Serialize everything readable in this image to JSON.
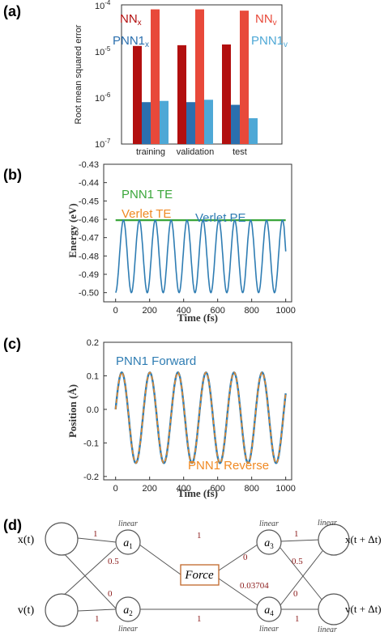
{
  "panel_labels": [
    "(a)",
    "(b)",
    "(c)",
    "(d)"
  ],
  "chart_data": [
    {
      "panel": "(a)",
      "type": "bar",
      "categories": [
        "training",
        "validation",
        "test"
      ],
      "ylabel": "Root mean squared error",
      "yscale": "log",
      "ylim": [
        1e-07,
        0.0001
      ],
      "yticks": [
        "10^-7",
        "10^-6",
        "10^-5",
        "10^-4"
      ],
      "series": [
        {
          "name": "NN_x",
          "legend_main": "NN",
          "legend_sub": "x",
          "color": "#b20f0f",
          "values": [
            1.3e-05,
            1.35e-05,
            1.4e-05
          ]
        },
        {
          "name": "PNN1_x",
          "legend_main": "PNN1",
          "legend_sub": "x",
          "color": "#2b6fae",
          "values": [
            8e-07,
            8e-07,
            7e-07
          ]
        },
        {
          "name": "NN_v",
          "legend_main": "NN",
          "legend_sub": "v",
          "color": "#e8493a",
          "values": [
            8e-05,
            8e-05,
            7.5e-05
          ]
        },
        {
          "name": "PNN1_v",
          "legend_main": "PNN1",
          "legend_sub": "v",
          "color": "#4ea8d6",
          "values": [
            8.5e-07,
            9e-07,
            3.6e-07
          ]
        }
      ]
    },
    {
      "panel": "(b)",
      "type": "line",
      "xlabel": "Time (fs)",
      "ylabel": "Energy (eV)",
      "xlim": [
        0,
        1000
      ],
      "ylim": [
        -0.505,
        -0.43
      ],
      "xticks": [
        0,
        200,
        400,
        600,
        800,
        1000
      ],
      "yticks": [
        "-0.43",
        "-0.44",
        "-0.45",
        "-0.46",
        "-0.47",
        "-0.48",
        "-0.49",
        "-0.50"
      ],
      "series": [
        {
          "name": "PNN1 TE",
          "color": "#3aa63a",
          "value": -0.4605
        },
        {
          "name": "Verlet TE",
          "color": "#f08a24",
          "value": -0.4605
        },
        {
          "name": "Verlet PE",
          "color": "#2f7db3",
          "max": -0.4605,
          "min": -0.5,
          "period": 93.5,
          "t_end": 1000,
          "end_value": -0.4775
        }
      ]
    },
    {
      "panel": "(c)",
      "type": "line",
      "xlabel": "Time (fs)",
      "ylabel": "Position (Å)",
      "xlim": [
        0,
        1000
      ],
      "ylim": [
        -0.21,
        0.2
      ],
      "xticks": [
        0,
        200,
        400,
        600,
        800,
        1000
      ],
      "yticks": [
        "0.2",
        "0.1",
        "0.0",
        "-0.1",
        "-0.2"
      ],
      "series": [
        {
          "name": "PNN1 Forward",
          "color": "#2f7db3",
          "amplitude": 0.135,
          "offset": -0.025,
          "period": 165,
          "start_value": 0.0,
          "t_end": 1000
        },
        {
          "name": "PNN1 Reverse",
          "color": "#f08a24",
          "amplitude": 0.135,
          "offset": -0.025,
          "period": 165,
          "start_value": 0.0,
          "t_end": 1000
        }
      ]
    }
  ],
  "diagram": {
    "inputs": [
      "x(t)",
      "v(t)"
    ],
    "outputs": [
      "x(t + Δt)",
      "v(t + Δt)"
    ],
    "hidden": [
      {
        "label": "a",
        "sub": "1",
        "activation": "linear"
      },
      {
        "label": "a",
        "sub": "2",
        "activation": "linear"
      },
      {
        "label": "a",
        "sub": "3",
        "activation": "linear"
      },
      {
        "label": "a",
        "sub": "4",
        "activation": "linear"
      }
    ],
    "force_label": "Force",
    "out_activation": "linear",
    "weights": {
      "x_a1": "1",
      "v_a1": "0.5",
      "x_a2": "0",
      "v_a2": "1",
      "a1_force": "1",
      "a2_a4": "1",
      "force_a3": "0",
      "force_a4": "0.03704",
      "a3_xo": "1",
      "a4_xo": "0.5",
      "a3_vo": "0",
      "a4_vo": "1"
    },
    "weight_color": "#8b1a1a",
    "force_border_color": "#c0662a"
  }
}
